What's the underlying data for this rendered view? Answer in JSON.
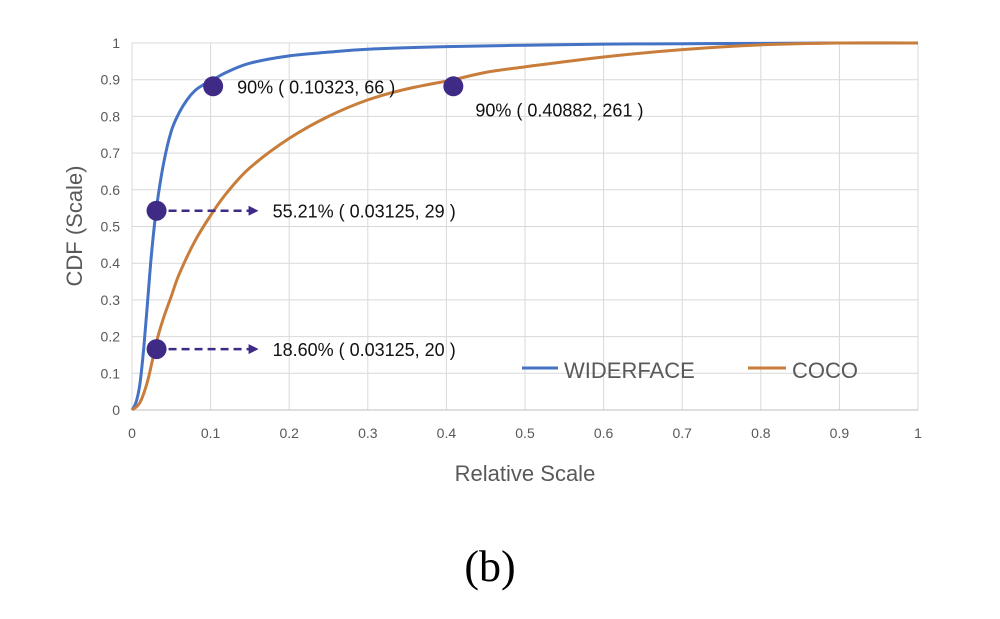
{
  "chart_data": {
    "type": "line",
    "title": "",
    "xlabel": "Relative Scale",
    "ylabel": "CDF (Scale)",
    "xlim": [
      0,
      1
    ],
    "ylim": [
      0,
      1
    ],
    "x_ticks": [
      "0",
      "0.1",
      "0.2",
      "0.3",
      "0.4",
      "0.5",
      "0.6",
      "0.7",
      "0.8",
      "0.9",
      "1"
    ],
    "y_ticks": [
      "0",
      "0.1",
      "0.2",
      "0.3",
      "0.4",
      "0.5",
      "0.6",
      "0.7",
      "0.8",
      "0.9",
      "1"
    ],
    "grid": true,
    "legend_position": "bottom-right",
    "series": [
      {
        "name": "WIDERFACE",
        "color": "#4472c4",
        "x": [
          0,
          0.005,
          0.01,
          0.015,
          0.02,
          0.025,
          0.03125,
          0.04,
          0.05,
          0.06,
          0.07,
          0.08,
          0.09,
          0.10323,
          0.12,
          0.15,
          0.2,
          0.25,
          0.3,
          0.4,
          0.5,
          0.6,
          0.7,
          0.8,
          0.9,
          1.0
        ],
        "y": [
          0,
          0.02,
          0.07,
          0.17,
          0.3,
          0.43,
          0.5521,
          0.67,
          0.76,
          0.81,
          0.845,
          0.87,
          0.885,
          0.9,
          0.92,
          0.945,
          0.965,
          0.975,
          0.983,
          0.99,
          0.994,
          0.997,
          0.998,
          0.999,
          1.0,
          1.0
        ]
      },
      {
        "name": "COCO",
        "color": "#c97d3a",
        "x": [
          0,
          0.01,
          0.02,
          0.03125,
          0.04,
          0.05,
          0.06,
          0.08,
          0.1,
          0.12,
          0.15,
          0.2,
          0.25,
          0.3,
          0.35,
          0.40882,
          0.45,
          0.5,
          0.6,
          0.7,
          0.8,
          0.9,
          1.0
        ],
        "y": [
          0,
          0.02,
          0.08,
          0.186,
          0.25,
          0.31,
          0.37,
          0.46,
          0.53,
          0.59,
          0.66,
          0.74,
          0.8,
          0.845,
          0.875,
          0.9,
          0.92,
          0.935,
          0.962,
          0.982,
          0.995,
          1.0,
          1.0
        ]
      }
    ],
    "markers": [
      {
        "x": 0.10323,
        "y": 0.882,
        "label": "90% ( 0.10323, 66 )",
        "arrow": false
      },
      {
        "x": 0.40882,
        "y": 0.882,
        "label": "90% ( 0.40882, 261 )",
        "arrow": false
      },
      {
        "x": 0.03125,
        "y": 0.543,
        "label": "55.21% ( 0.03125, 29 )",
        "arrow": true
      },
      {
        "x": 0.03125,
        "y": 0.166,
        "label": "18.60% ( 0.03125, 20 )",
        "arrow": true
      }
    ],
    "marker_color": "#3f2a86",
    "caption": "(b)"
  }
}
